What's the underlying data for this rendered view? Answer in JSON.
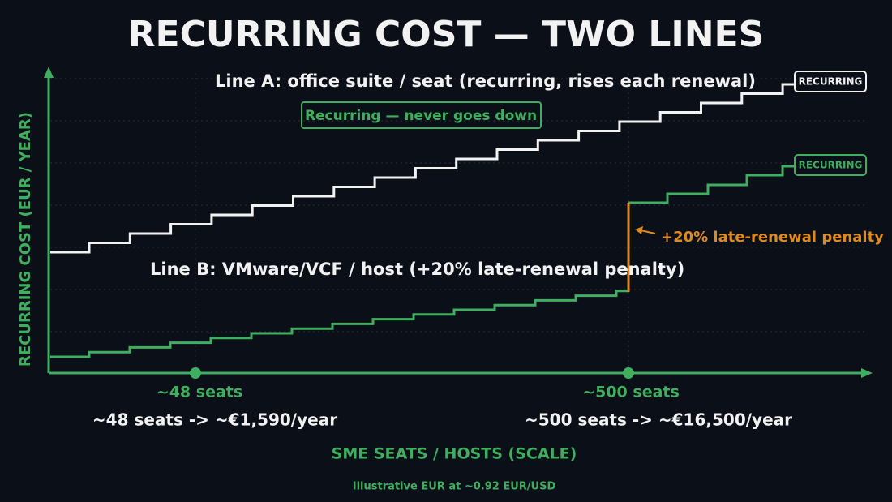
{
  "title": "RECURRING COST — TWO LINES",
  "y_axis_title": "RECURRING COST (EUR / YEAR)",
  "x_axis_title": "SME SEATS / HOSTS (SCALE)",
  "footnote": "Illustrative EUR at ~0.92 EUR/USD",
  "line_a": {
    "label": "Line A: office suite / seat (recurring, rises each renewal)",
    "tag": "RECURRING",
    "note": "Recurring — never goes down"
  },
  "line_b": {
    "label": "Line B: VMware/VCF / host (+20% late-renewal penalty)",
    "tag": "RECURRING",
    "penalty": "+20% late-renewal penalty"
  },
  "markers": [
    {
      "label": "~48 seats",
      "detail": "~48 seats -> ~€1,590/year"
    },
    {
      "label": "~500 seats",
      "detail": "~500 seats -> ~€16,500/year"
    }
  ]
}
